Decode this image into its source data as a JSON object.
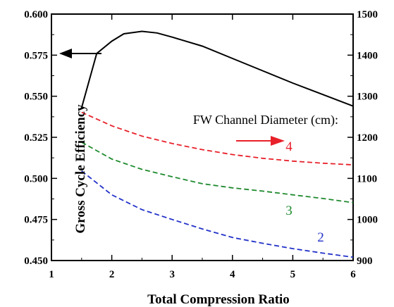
{
  "chart_data": {
    "type": "line",
    "xlabel": "Total Compression Ratio",
    "ylabel_left": "Gross Cycle Efficiency",
    "xlim": [
      1,
      6
    ],
    "ylim_left": [
      0.45,
      0.6
    ],
    "ylim_right": [
      900,
      1500
    ],
    "x_ticks": [
      "1",
      "2",
      "3",
      "4",
      "5",
      "6"
    ],
    "y_left_ticks": [
      "0.450",
      "0.475",
      "0.500",
      "0.525",
      "0.550",
      "0.575",
      "0.600"
    ],
    "y_right_ticks": [
      "900",
      "1000",
      "1100",
      "1200",
      "1300",
      "1400",
      "1500"
    ],
    "annotation": "FW Channel Diameter (cm):",
    "grid": false,
    "series": [
      {
        "axis": "left",
        "color": "#000000",
        "dash": "solid",
        "x": [
          1.5,
          1.75,
          2.0,
          2.2,
          2.5,
          2.75,
          3.0,
          3.5,
          4.0,
          4.5,
          5.0,
          5.5,
          6.0
        ],
        "y": [
          0.543,
          0.576,
          0.5835,
          0.588,
          0.5895,
          0.5885,
          0.586,
          0.5805,
          0.573,
          0.5655,
          0.558,
          0.551,
          0.544
        ]
      },
      {
        "axis": "right",
        "label": "4",
        "color": "#e8202a",
        "dash": "dashed",
        "x": [
          1.5,
          2.0,
          2.5,
          3.0,
          3.5,
          4.0,
          4.5,
          5.0,
          5.5,
          6.0
        ],
        "y": [
          1261,
          1228,
          1203,
          1185,
          1170,
          1158,
          1149,
          1142,
          1137,
          1133
        ]
      },
      {
        "axis": "right",
        "label": "3",
        "color": "#1f8a2e",
        "dash": "dashed",
        "x": [
          1.5,
          2.0,
          2.5,
          3.0,
          3.5,
          4.0,
          4.5,
          5.0,
          5.5,
          6.0
        ],
        "y": [
          1188,
          1147,
          1122,
          1104,
          1087,
          1077,
          1069,
          1060,
          1051,
          1041
        ]
      },
      {
        "axis": "right",
        "label": "2",
        "color": "#2231c8",
        "dash": "dashed",
        "x": [
          1.5,
          2.0,
          2.5,
          3.0,
          3.5,
          4.0,
          4.5,
          5.0,
          5.5,
          6.0
        ],
        "y": [
          1118,
          1060,
          1024,
          1000,
          977,
          956,
          942,
          929,
          918,
          908
        ]
      }
    ]
  }
}
